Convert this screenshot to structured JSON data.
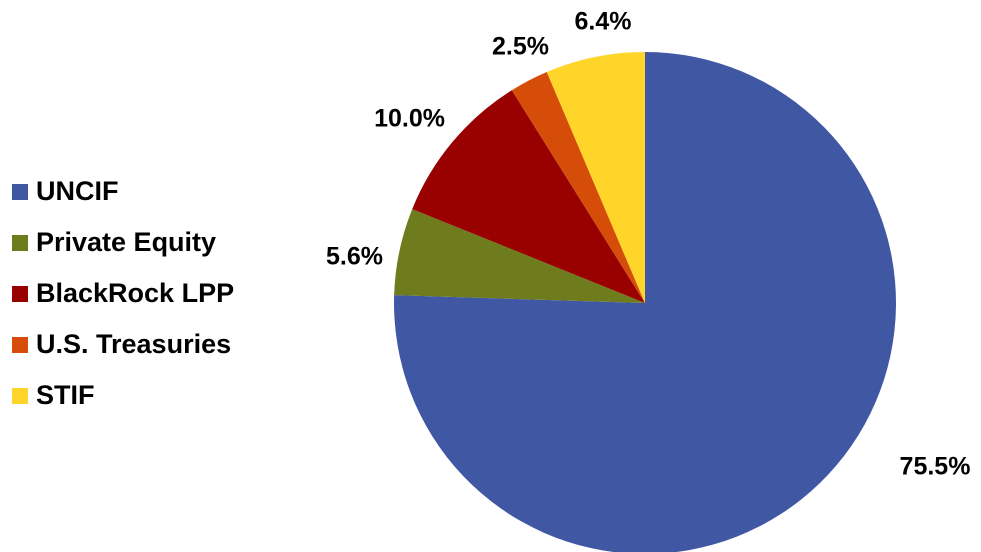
{
  "chart_data": {
    "type": "pie",
    "categories": [
      "UNCIF",
      "Private Equity",
      "BlackRock LPP",
      "U.S. Treasuries",
      "STIF"
    ],
    "values": [
      75.5,
      5.6,
      10.0,
      2.5,
      6.4
    ],
    "data_labels": [
      "75.5%",
      "5.6%",
      "10.0%",
      "2.5%",
      "6.4%"
    ],
    "colors": [
      "#4057A3",
      "#6E7C1E",
      "#990000",
      "#D64D0A",
      "#FFD52A"
    ],
    "legend_position": "left",
    "start_angle": "12 o'clock",
    "direction": "clockwise"
  },
  "legend": {
    "items": [
      {
        "label": "UNCIF",
        "color": "#4057A3"
      },
      {
        "label": "Private Equity",
        "color": "#6E7C1E"
      },
      {
        "label": "BlackRock LPP",
        "color": "#990000"
      },
      {
        "label": "U.S. Treasuries",
        "color": "#D64D0A"
      },
      {
        "label": "STIF",
        "color": "#FFD52A"
      }
    ]
  }
}
